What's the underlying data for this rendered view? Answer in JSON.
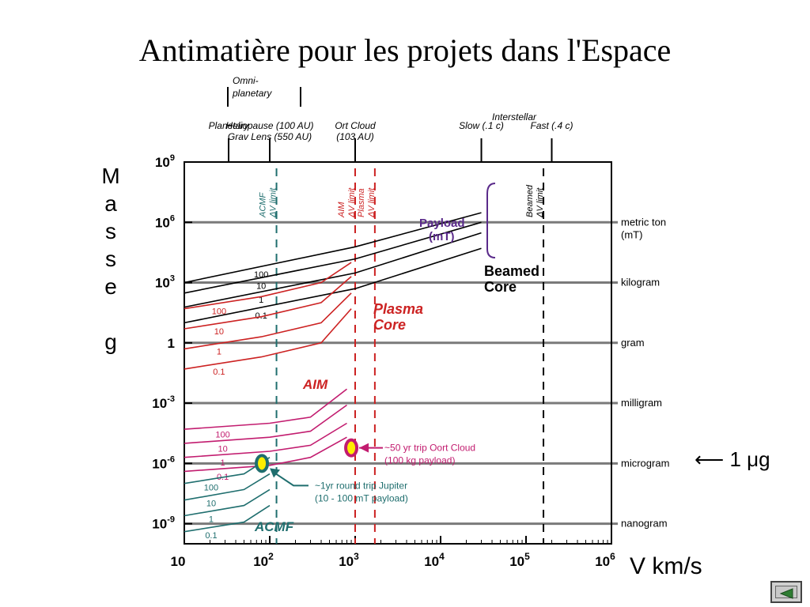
{
  "title": "Antimatière pour les projets dans l'Espace",
  "y_axis_label": "Masse g",
  "x_axis_label": "V km/s",
  "microgram_annotation": "⟵ 1 μg",
  "colors": {
    "red": "#cc2222",
    "magenta": "#c21c6f",
    "teal": "#1f6e6e",
    "black": "#000000",
    "purple": "#5a2a8a",
    "grey": "#7a7a7a"
  },
  "nav_button": {
    "icon": "back-arrow-icon"
  },
  "chart_data": {
    "type": "line",
    "x_scale": "log",
    "y_scale": "log",
    "xlim": [
      10,
      1000000
    ],
    "ylim": [
      1e-10,
      1000000000.0
    ],
    "x_ticks": [
      {
        "value": 10,
        "base": "10",
        "exp": ""
      },
      {
        "value": 100,
        "base": "10",
        "exp": "2"
      },
      {
        "value": 1000,
        "base": "10",
        "exp": "3"
      },
      {
        "value": 10000,
        "base": "10",
        "exp": "4"
      },
      {
        "value": 100000,
        "base": "10",
        "exp": "5"
      },
      {
        "value": 1000000,
        "base": "10",
        "exp": "6"
      }
    ],
    "y_ticks": [
      {
        "value": 1000000000.0,
        "base": "10",
        "exp": "9"
      },
      {
        "value": 1000000.0,
        "base": "10",
        "exp": "6"
      },
      {
        "value": 1000.0,
        "base": "10",
        "exp": "3"
      },
      {
        "value": 1,
        "base": "1",
        "exp": ""
      },
      {
        "value": 0.001,
        "base": "10",
        "exp": "-3"
      },
      {
        "value": 1e-06,
        "base": "10",
        "exp": "-6"
      },
      {
        "value": 1e-09,
        "base": "10",
        "exp": "-9"
      }
    ],
    "mass_units": [
      {
        "value": 1000000.0,
        "label": "metric ton",
        "label2": "(mT)"
      },
      {
        "value": 1000.0,
        "label": "kilogram",
        "label2": ""
      },
      {
        "value": 1,
        "label": "gram",
        "label2": ""
      },
      {
        "value": 0.001,
        "label": "milligram",
        "label2": ""
      },
      {
        "value": 1e-06,
        "label": "microgram",
        "label2": ""
      },
      {
        "value": 1e-09,
        "label": "nanogram",
        "label2": ""
      }
    ],
    "mission_markers": [
      {
        "x": 33,
        "line1": "Planetary",
        "line2": "",
        "stem": "short"
      },
      {
        "x": 100,
        "line1": "Heliopause (100 AU)",
        "line2": "Grav Lens (550 AU)",
        "stem": "short"
      },
      {
        "x": 1000,
        "line1": "Ort Cloud",
        "line2": "(103 AU)",
        "stem": "short"
      },
      {
        "x": 30000,
        "line1": "Slow (.1 c)",
        "line2": "",
        "stem": "short"
      },
      {
        "x": 200000,
        "line1": "Fast (.4 c)",
        "line2": "",
        "stem": "short"
      }
    ],
    "mission_text": {
      "omni": [
        "Omni-",
        "planetary"
      ],
      "interstellar": "Interstellar"
    },
    "dv_limits": [
      {
        "x": 120,
        "line1": "ACMF",
        "line2": "ΔV limit",
        "color": "teal"
      },
      {
        "x": 1000,
        "line1": "AIM",
        "line2": "ΔV limit",
        "color": "red"
      },
      {
        "x": 1700,
        "line1": "Plasma",
        "line2": "ΔV limit",
        "color": "red"
      },
      {
        "x": 160000,
        "line1": "Beamed",
        "line2": "ΔV limit",
        "color": "black"
      }
    ],
    "series": [
      {
        "family": "Beamed Core",
        "color": "black",
        "curves": [
          {
            "label": "100",
            "points": [
              [
                10,
                1000
              ],
              [
                1000,
                60000
              ],
              [
                30000,
                3000000
              ]
            ]
          },
          {
            "label": "10",
            "points": [
              [
                10,
                300
              ],
              [
                1000,
                15000
              ],
              [
                30000,
                1000000
              ]
            ]
          },
          {
            "label": "1",
            "points": [
              [
                10,
                60
              ],
              [
                1000,
                3000
              ],
              [
                30000,
                300000
              ]
            ]
          },
          {
            "label": "0.1",
            "points": [
              [
                10,
                10
              ],
              [
                1000,
                500
              ],
              [
                30000,
                50000
              ]
            ]
          }
        ]
      },
      {
        "family": "Plasma Core",
        "color": "red",
        "curves": [
          {
            "label": "100",
            "points": [
              [
                10,
                50
              ],
              [
                80,
                200
              ],
              [
                400,
                1000
              ],
              [
                900,
                10000
              ]
            ]
          },
          {
            "label": "10",
            "points": [
              [
                10,
                5
              ],
              [
                80,
                20
              ],
              [
                400,
                100
              ],
              [
                900,
                2000
              ]
            ]
          },
          {
            "label": "1",
            "points": [
              [
                10,
                0.5
              ],
              [
                80,
                2
              ],
              [
                400,
                10
              ],
              [
                900,
                300
              ]
            ]
          },
          {
            "label": "0.1",
            "points": [
              [
                10,
                0.05
              ],
              [
                80,
                0.2
              ],
              [
                400,
                1
              ],
              [
                900,
                50
              ]
            ]
          }
        ]
      },
      {
        "family": "AIM",
        "color": "magenta",
        "curves": [
          {
            "label": "100",
            "points": [
              [
                10,
                5e-05
              ],
              [
                100,
                0.0001
              ],
              [
                300,
                0.0002
              ],
              [
                800,
                0.005
              ]
            ]
          },
          {
            "label": "10",
            "points": [
              [
                10,
                1e-05
              ],
              [
                100,
                2e-05
              ],
              [
                300,
                4e-05
              ],
              [
                800,
                0.0008
              ]
            ]
          },
          {
            "label": "1",
            "points": [
              [
                10,
                2e-06
              ],
              [
                100,
                4e-06
              ],
              [
                300,
                8e-06
              ],
              [
                800,
                0.0001
              ]
            ]
          },
          {
            "label": "0.1",
            "points": [
              [
                10,
                4e-07
              ],
              [
                100,
                8e-07
              ],
              [
                300,
                2e-06
              ],
              [
                800,
                2e-05
              ]
            ]
          }
        ]
      },
      {
        "family": "ACMF",
        "color": "teal",
        "curves": [
          {
            "label": "100",
            "points": [
              [
                10,
                1e-07
              ],
              [
                50,
                3e-07
              ],
              [
                100,
                2e-06
              ]
            ]
          },
          {
            "label": "10",
            "points": [
              [
                10,
                1.5e-08
              ],
              [
                50,
                5e-08
              ],
              [
                100,
                3e-07
              ]
            ]
          },
          {
            "label": "1",
            "points": [
              [
                10,
                2.5e-09
              ],
              [
                50,
                8e-09
              ],
              [
                100,
                5e-08
              ]
            ]
          },
          {
            "label": "0.1",
            "points": [
              [
                10,
                4e-10
              ],
              [
                50,
                1.2e-09
              ],
              [
                100,
                8e-09
              ]
            ]
          }
        ]
      }
    ],
    "region_labels": [
      {
        "text": "Payload",
        "text2": "(mT)",
        "color": "purple"
      },
      {
        "text": "Beamed",
        "text2": "Core",
        "color": "black"
      },
      {
        "text": "Plasma",
        "text2": "Core",
        "color": "red"
      },
      {
        "text": "AIM",
        "text2": "",
        "color": "red"
      },
      {
        "text": "ACMF",
        "text2": "",
        "color": "teal"
      }
    ],
    "annotations": [
      {
        "x": 90,
        "y": 1e-06,
        "line1": "~1yr round trip Jupiter",
        "line2": "(10 - 100 mT  payload)",
        "color": "teal"
      },
      {
        "x": 900,
        "y": 2e-06,
        "line1": "~50 yr trip Oort Cloud",
        "line2": "(100 kg payload)",
        "color": "magenta"
      }
    ]
  }
}
